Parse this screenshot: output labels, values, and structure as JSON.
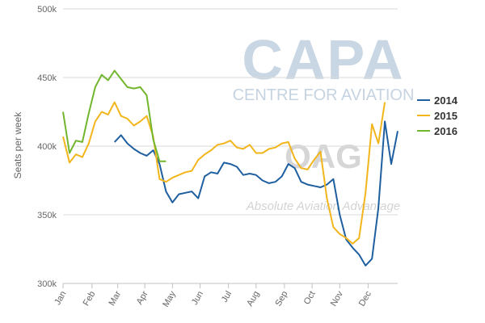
{
  "chart_data": {
    "type": "line",
    "title": "",
    "xlabel": "",
    "ylabel": "Seats per week",
    "ylim": [
      300000,
      500000
    ],
    "yticks": [
      {
        "value": 300000,
        "label": "300k"
      },
      {
        "value": 350000,
        "label": "350k"
      },
      {
        "value": 400000,
        "label": "400k"
      },
      {
        "value": 450000,
        "label": "450k"
      },
      {
        "value": 500000,
        "label": "500k"
      }
    ],
    "xlim": [
      1,
      53
    ],
    "xticks": [
      {
        "week": 1,
        "label": "Jan"
      },
      {
        "week": 5.5,
        "label": "Feb"
      },
      {
        "week": 9.5,
        "label": "Mar"
      },
      {
        "week": 13.7,
        "label": "Apr"
      },
      {
        "week": 18,
        "label": "May"
      },
      {
        "week": 22.3,
        "label": "Jun"
      },
      {
        "week": 26.7,
        "label": "Jul"
      },
      {
        "week": 31,
        "label": "Aug"
      },
      {
        "week": 35.4,
        "label": "Sep"
      },
      {
        "week": 39.7,
        "label": "Oct"
      },
      {
        "week": 44,
        "label": "Nov"
      },
      {
        "week": 48.4,
        "label": "Dec"
      }
    ],
    "grid": "horizontal",
    "legend_position": "right",
    "series": [
      {
        "name": "2014",
        "color": "#1f5fa0",
        "start_week": 9,
        "values": [
          403000,
          408000,
          402000,
          398000,
          395000,
          393000,
          397000,
          387000,
          367000,
          359000,
          365000,
          366000,
          367000,
          362000,
          378000,
          381000,
          380000,
          388000,
          387000,
          385000,
          379000,
          380000,
          379000,
          375000,
          373000,
          374000,
          378000,
          387000,
          384000,
          374000,
          372000,
          371000,
          370000,
          372000,
          376000,
          350000,
          332000,
          326000,
          321000,
          313000,
          318000,
          355000,
          418000,
          387000,
          411000
        ]
      },
      {
        "name": "2015",
        "color": "#f2b51c",
        "start_week": 1,
        "values": [
          407000,
          388000,
          394000,
          392000,
          402000,
          418000,
          425000,
          423000,
          432000,
          422000,
          420000,
          415000,
          418000,
          422000,
          407000,
          376000,
          374000,
          377000,
          379000,
          381000,
          382000,
          390000,
          394000,
          397000,
          401000,
          402000,
          404000,
          399000,
          398000,
          401000,
          395000,
          395000,
          398000,
          399000,
          402000,
          403000,
          391000,
          384000,
          383000,
          390000,
          396000,
          362000,
          341000,
          336000,
          333000,
          329000,
          333000,
          366000,
          416000,
          402000,
          432000
        ]
      },
      {
        "name": "2016",
        "color": "#72b62e",
        "start_week": 1,
        "values": [
          425000,
          395000,
          404000,
          403000,
          424000,
          443000,
          452000,
          448000,
          455000,
          449000,
          443000,
          442000,
          443000,
          437000,
          405000,
          389000,
          389000
        ]
      }
    ]
  },
  "watermark": {
    "brand": "CAPA",
    "brand_sub": "CENTRE FOR AVIATION",
    "partner": "OAG",
    "tagline": "Absolute Aviation Advantage"
  }
}
